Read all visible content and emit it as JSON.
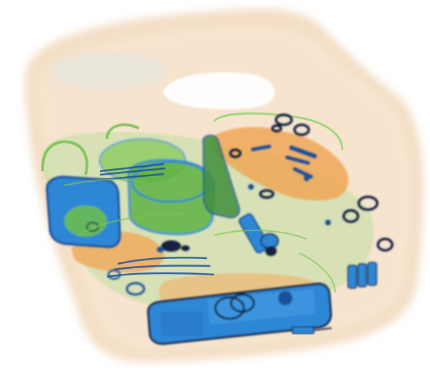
{
  "image": {
    "kind": "x-ray baggage scan",
    "colors": {
      "background": "#ffffff",
      "bag_shell": "#f3dcc0",
      "bag_edge": "#e9c9a3",
      "organic_orange": "#f0a24e",
      "organic_light": "#f6c07e",
      "mixed_green": "#6fbf4a",
      "mixed_green_light": "#a9d987",
      "metal_blue": "#2f86d6",
      "metal_dark": "#1a4f9a",
      "dense_black": "#13243f"
    }
  }
}
